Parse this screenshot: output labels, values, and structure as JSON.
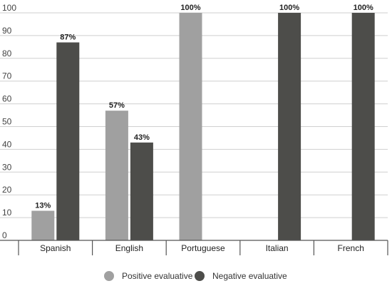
{
  "chart_data": {
    "type": "bar",
    "categories": [
      "Spanish",
      "English",
      "Portuguese",
      "Italian",
      "French"
    ],
    "series": [
      {
        "name": "Positive evaluative",
        "values": [
          13,
          57,
          100,
          null,
          null
        ],
        "color": "#a0a0a0"
      },
      {
        "name": "Negative evaluative",
        "values": [
          87,
          43,
          null,
          100,
          100
        ],
        "color": "#4d4d4a"
      }
    ],
    "value_labels": [
      [
        "13%",
        "57%",
        "100%",
        "",
        ""
      ],
      [
        "87%",
        "43%",
        "",
        "100%",
        "100%"
      ]
    ],
    "ylim": [
      0,
      100
    ],
    "yticks": [
      0,
      10,
      20,
      30,
      40,
      50,
      60,
      70,
      80,
      90,
      100
    ],
    "grid": true,
    "legend": "bottom-center"
  }
}
